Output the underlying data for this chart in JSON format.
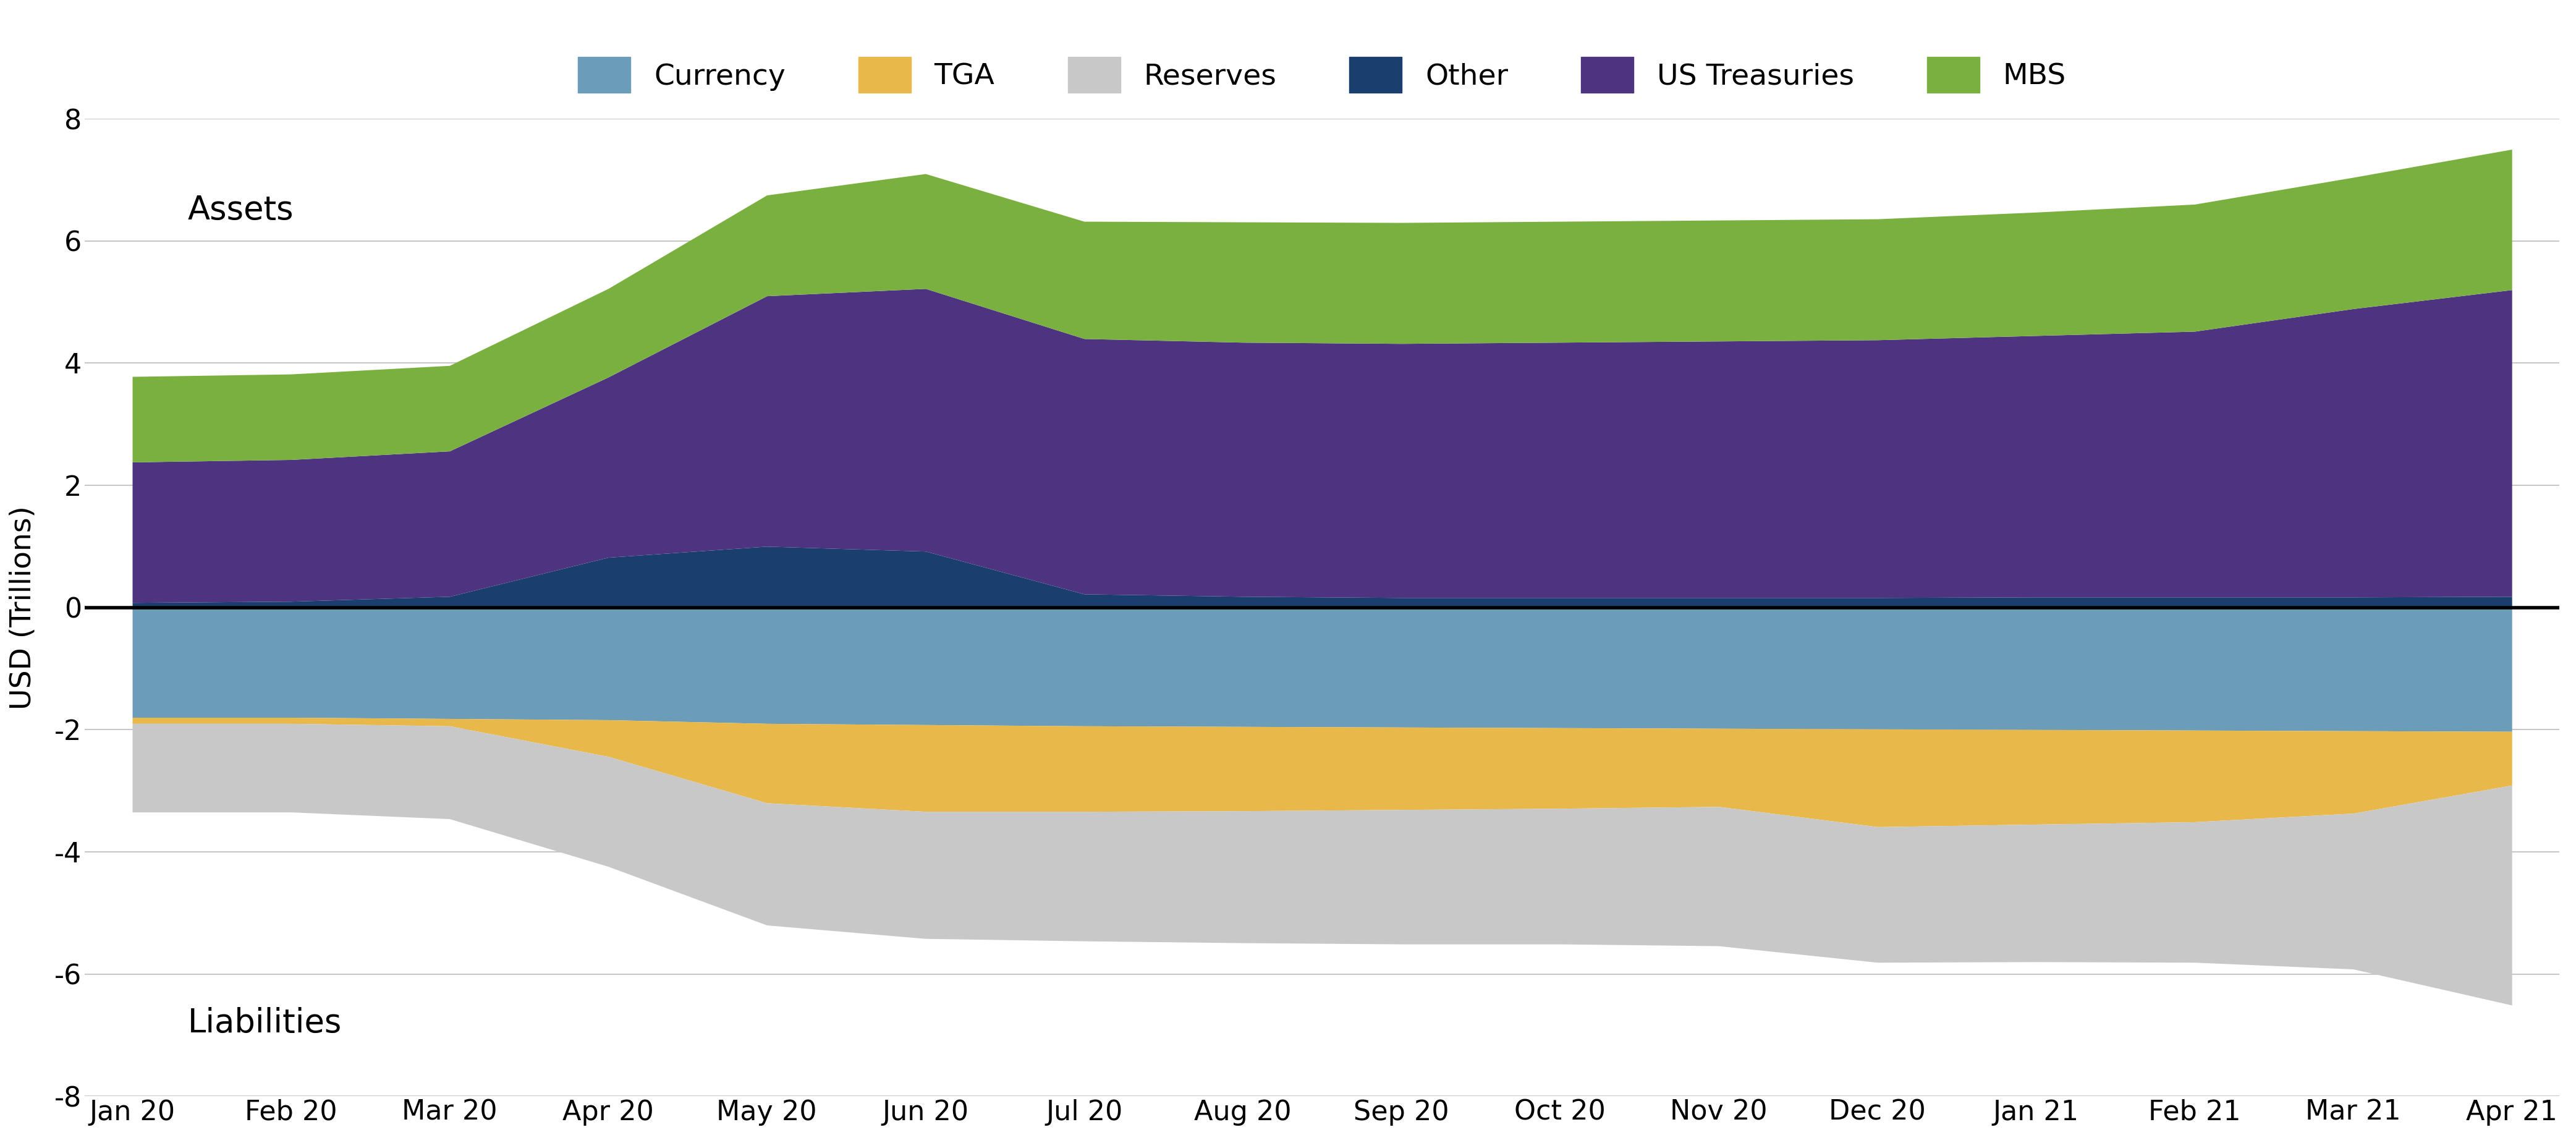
{
  "ylabel": "USD (Trillions)",
  "ylim": [
    -8,
    8
  ],
  "yticks": [
    -8,
    -6,
    -4,
    -2,
    0,
    2,
    4,
    6,
    8
  ],
  "x_labels": [
    "Jan 20",
    "Feb 20",
    "Mar 20",
    "Apr 20",
    "May 20",
    "Jun 20",
    "Jul 20",
    "Aug 20",
    "Sep 20",
    "Oct 20",
    "Nov 20",
    "Dec 20",
    "Jan 21",
    "Feb 21",
    "Mar 21",
    "Apr 21"
  ],
  "legend_labels": [
    "Currency",
    "TGA",
    "Reserves",
    "Other",
    "US Treasuries",
    "MBS"
  ],
  "colors": {
    "Currency": "#6b9cb8",
    "TGA": "#e8b84b",
    "Reserves": "#c8c8c8",
    "Other": "#1a3e6e",
    "US Treasuries": "#4e3480",
    "MBS": "#7ab040"
  },
  "background_color": "#ffffff",
  "assets": {
    "Other": [
      0.08,
      0.1,
      0.18,
      0.82,
      1.0,
      0.92,
      0.22,
      0.18,
      0.16,
      0.16,
      0.16,
      0.16,
      0.17,
      0.17,
      0.17,
      0.18
    ],
    "US_Treasuries": [
      2.3,
      2.32,
      2.38,
      2.95,
      4.1,
      4.3,
      4.18,
      4.16,
      4.16,
      4.18,
      4.2,
      4.22,
      4.28,
      4.35,
      4.72,
      5.02
    ],
    "MBS": [
      1.4,
      1.4,
      1.4,
      1.45,
      1.65,
      1.88,
      1.92,
      1.97,
      1.98,
      1.98,
      1.98,
      1.98,
      2.02,
      2.08,
      2.15,
      2.3
    ]
  },
  "liabilities": {
    "Currency": [
      -1.8,
      -1.8,
      -1.82,
      -1.84,
      -1.9,
      -1.92,
      -1.94,
      -1.95,
      -1.96,
      -1.97,
      -1.98,
      -1.99,
      -2.0,
      -2.01,
      -2.02,
      -2.03
    ],
    "TGA": [
      -0.1,
      -0.1,
      -0.12,
      -0.6,
      -1.3,
      -1.42,
      -1.4,
      -1.38,
      -1.35,
      -1.32,
      -1.28,
      -1.6,
      -1.55,
      -1.5,
      -1.35,
      -0.88
    ],
    "Reserves": [
      -1.45,
      -1.45,
      -1.52,
      -1.8,
      -2.0,
      -2.08,
      -2.12,
      -2.16,
      -2.2,
      -2.22,
      -2.28,
      -2.22,
      -2.25,
      -2.3,
      -2.55,
      -3.6
    ]
  }
}
